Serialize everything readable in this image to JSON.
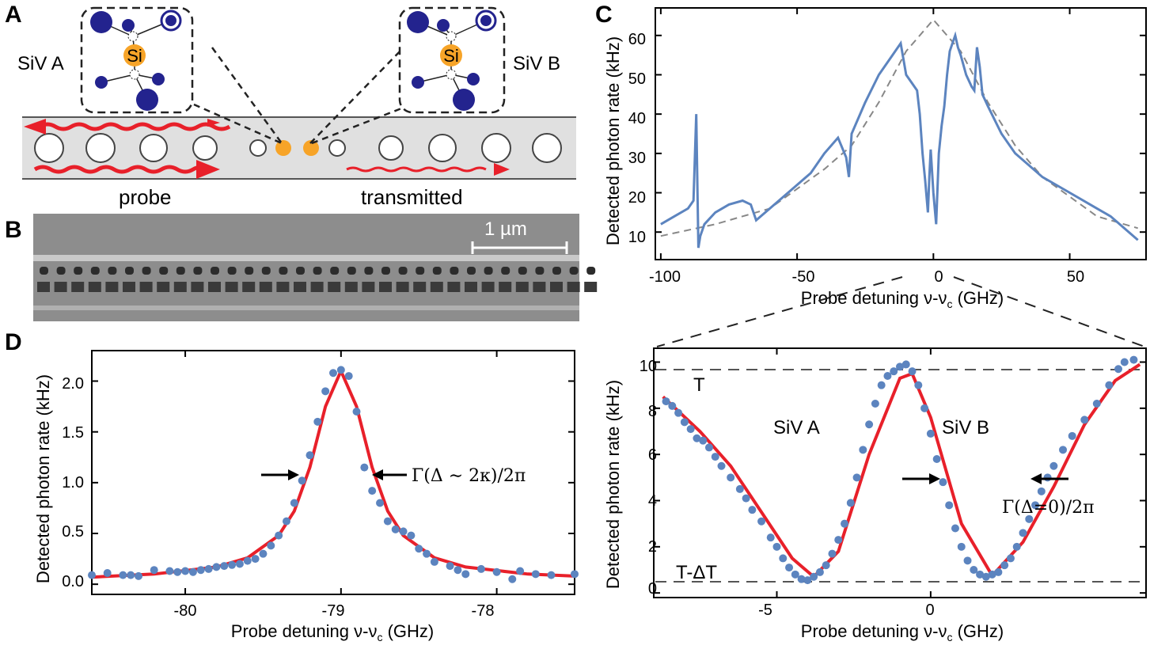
{
  "panels": {
    "a": {
      "letter": "A",
      "siv_a_label": "SiV A",
      "siv_b_label": "SiV B",
      "atom_label": "Si",
      "probe_label": "probe",
      "transmitted_label": "transmitted",
      "colors": {
        "atom_si": "#f7a428",
        "atom_c": "#23238e",
        "arrow": "#e8202a",
        "waveguide": "#e0e0e0"
      }
    },
    "b": {
      "letter": "B",
      "scale_label": "1 µm"
    },
    "c": {
      "letter": "C",
      "xlabel": "Probe detuning ν-ν",
      "xlabel_sub": "c",
      "xlabel_unit": " (GHz)",
      "ylabel": "Detected photon rate (kHz)",
      "xticks": [
        "-100",
        "-50",
        "0",
        "50"
      ],
      "yticks": [
        "10",
        "20",
        "30",
        "40",
        "50",
        "60"
      ]
    },
    "d": {
      "letter": "D",
      "xlabel": "Probe detuning ν-ν",
      "xlabel_sub": "c",
      "xlabel_unit": " (GHz)",
      "ylabel": "Detected photon rate (kHz)",
      "xticks": [
        "-80",
        "-79",
        "-78"
      ],
      "yticks": [
        "0.0",
        "0.5",
        "1.0",
        "1.5",
        "2.0"
      ],
      "annotation": "Γ(Δ ∼ 2κ)/2π"
    },
    "e": {
      "xlabel": "Probe detuning ν-ν",
      "xlabel_sub": "c",
      "xlabel_unit": " (GHz)",
      "ylabel": "Detected photon rate (kHz)",
      "xticks": [
        "-5",
        "0"
      ],
      "yticks": [
        "0",
        "2",
        "4",
        "6",
        "8",
        "10"
      ],
      "label_t": "T",
      "label_tdt": "T-ΔT",
      "label_siv_a": "SiV A",
      "label_siv_b": "SiV B",
      "annotation": "Γ(Δ=0)/2π"
    }
  },
  "chart_data": [
    {
      "panel": "C",
      "type": "line",
      "xlabel": "Probe detuning ν-νc (GHz)",
      "ylabel": "Detected photon rate (kHz)",
      "xlim": [
        -102,
        78
      ],
      "ylim": [
        3,
        67
      ],
      "series": [
        {
          "x": [
            -100,
            -95,
            -90,
            -88,
            -87,
            -86.2,
            -85.5,
            -84,
            -80,
            -75,
            -70,
            -67,
            -65,
            -60,
            -55,
            -50,
            -45,
            -40,
            -35,
            -32,
            -31,
            -30,
            -25,
            -20,
            -15,
            -12,
            -10,
            -8,
            -6,
            -5,
            -4,
            -3,
            -2,
            -1.5,
            -1,
            0,
            1,
            2,
            3,
            4,
            5,
            6,
            7,
            8,
            9,
            10,
            12,
            14,
            15,
            16,
            17,
            18,
            20,
            25,
            30,
            40,
            50,
            60,
            65,
            70,
            75
          ],
          "y": [
            12,
            14,
            16,
            18,
            40,
            6,
            9,
            12,
            15,
            17,
            18,
            17,
            13,
            16,
            19,
            22,
            25,
            30,
            34,
            29,
            24,
            35,
            43,
            50,
            55,
            58,
            50,
            48,
            46,
            40,
            30,
            23,
            15,
            24,
            31,
            20,
            12,
            30,
            37,
            42,
            50,
            56,
            58,
            60,
            57,
            55,
            50,
            47,
            46,
            57,
            52,
            45,
            42,
            35,
            30,
            24,
            20,
            16,
            14,
            11,
            8
          ]
        },
        {
          "name": "fit",
          "type": "dashed-lorentzian",
          "x": [
            -100,
            -80,
            -60,
            -40,
            -30,
            -20,
            -10,
            0,
            10,
            20,
            30,
            40,
            60,
            75
          ],
          "y": [
            9,
            12,
            16,
            26,
            32,
            43,
            56,
            64,
            56,
            43,
            32,
            24,
            14,
            11
          ]
        }
      ]
    },
    {
      "panel": "D",
      "type": "scatter",
      "xlabel": "Probe detuning ν-νc (GHz)",
      "ylabel": "Detected photon rate (kHz)",
      "xlim": [
        -80.6,
        -77.5
      ],
      "ylim": [
        -0.1,
        2.3
      ],
      "series": [
        {
          "x": [
            -80.6,
            -80.5,
            -80.4,
            -80.35,
            -80.3,
            -80.2,
            -80.1,
            -80.05,
            -80.0,
            -79.95,
            -79.9,
            -79.85,
            -79.8,
            -79.75,
            -79.7,
            -79.65,
            -79.6,
            -79.55,
            -79.5,
            -79.45,
            -79.4,
            -79.35,
            -79.3,
            -79.25,
            -79.2,
            -79.15,
            -79.1,
            -79.05,
            -79.0,
            -78.95,
            -78.9,
            -78.85,
            -78.8,
            -78.75,
            -78.7,
            -78.65,
            -78.6,
            -78.55,
            -78.5,
            -78.45,
            -78.4,
            -78.3,
            -78.25,
            -78.2,
            -78.1,
            -78.0,
            -77.9,
            -77.85,
            -77.75,
            -77.65,
            -77.5
          ],
          "y": [
            0.09,
            0.11,
            0.09,
            0.09,
            0.08,
            0.14,
            0.13,
            0.12,
            0.13,
            0.12,
            0.14,
            0.15,
            0.17,
            0.18,
            0.19,
            0.2,
            0.23,
            0.25,
            0.3,
            0.38,
            0.48,
            0.62,
            0.8,
            1.02,
            1.27,
            1.6,
            1.9,
            2.08,
            2.11,
            2.05,
            1.7,
            1.15,
            0.92,
            0.8,
            0.62,
            0.54,
            0.52,
            0.48,
            0.35,
            0.3,
            0.22,
            0.18,
            0.14,
            0.1,
            0.15,
            0.12,
            0.05,
            0.13,
            0.1,
            0.09,
            0.1
          ]
        },
        {
          "name": "fit",
          "type": "line",
          "x": [
            -80.6,
            -80.2,
            -79.8,
            -79.6,
            -79.4,
            -79.3,
            -79.2,
            -79.1,
            -79.0,
            -78.9,
            -78.8,
            -78.7,
            -78.6,
            -78.4,
            -78.2,
            -77.8,
            -77.5
          ],
          "y": [
            0.07,
            0.1,
            0.17,
            0.26,
            0.48,
            0.72,
            1.15,
            1.75,
            2.1,
            1.75,
            1.15,
            0.72,
            0.48,
            0.26,
            0.17,
            0.1,
            0.08
          ]
        }
      ]
    },
    {
      "panel": "E",
      "type": "scatter",
      "xlabel": "Probe detuning ν-νc (GHz)",
      "ylabel": "Detected photon rate (kHz)",
      "xlim": [
        -9,
        7
      ],
      "ylim": [
        -0.2,
        10.6
      ],
      "hlines": [
        9.9,
        0.4
      ],
      "series": [
        {
          "x": [
            -8.6,
            -8.4,
            -8.2,
            -8.0,
            -7.8,
            -7.6,
            -7.4,
            -7.2,
            -7.0,
            -6.8,
            -6.5,
            -6.2,
            -6.0,
            -5.8,
            -5.5,
            -5.2,
            -5.0,
            -4.8,
            -4.6,
            -4.4,
            -4.2,
            -4.0,
            -3.8,
            -3.6,
            -3.4,
            -3.2,
            -3.0,
            -2.8,
            -2.6,
            -2.4,
            -2.2,
            -2.0,
            -1.8,
            -1.6,
            -1.4,
            -1.2,
            -1.0,
            -0.8,
            -0.6,
            -0.4,
            -0.2,
            0.0,
            0.2,
            0.4,
            0.6,
            0.8,
            1.0,
            1.2,
            1.4,
            1.6,
            1.8,
            2.0,
            2.2,
            2.4,
            2.6,
            2.8,
            3.0,
            3.2,
            3.4,
            3.6,
            3.8,
            4.0,
            4.3,
            4.6,
            5.0,
            5.4,
            5.8,
            6.1,
            6.3,
            6.6
          ],
          "y": [
            8.3,
            8.1,
            7.8,
            7.4,
            7.1,
            6.7,
            6.6,
            6.3,
            5.9,
            5.5,
            5.0,
            4.5,
            4.1,
            3.6,
            3.1,
            2.4,
            2.0,
            1.5,
            1.1,
            0.8,
            0.6,
            0.55,
            0.7,
            0.9,
            1.2,
            1.7,
            2.3,
            3.0,
            3.9,
            5.0,
            6.2,
            7.3,
            8.2,
            9.0,
            9.4,
            9.6,
            9.8,
            9.9,
            9.6,
            9.0,
            8.0,
            6.9,
            5.8,
            4.8,
            3.8,
            2.8,
            2.0,
            1.4,
            1.0,
            0.8,
            0.7,
            0.8,
            0.9,
            1.2,
            1.5,
            2.0,
            2.6,
            3.2,
            3.8,
            4.4,
            5.0,
            5.5,
            6.2,
            6.8,
            7.5,
            8.2,
            9.0,
            9.7,
            10.0,
            10.1
          ]
        },
        {
          "name": "fit",
          "type": "line",
          "x": [
            -8.7,
            -7.5,
            -6.5,
            -5.5,
            -4.5,
            -3.8,
            -3.0,
            -2.0,
            -1.0,
            -0.6,
            0.0,
            1.0,
            2.0,
            3.0,
            4.0,
            5.0,
            6.0,
            6.8
          ],
          "y": [
            8.5,
            7.0,
            5.5,
            3.5,
            1.5,
            0.7,
            1.8,
            6.0,
            9.3,
            9.5,
            7.6,
            3.0,
            0.75,
            2.2,
            4.6,
            7.3,
            9.2,
            9.9
          ]
        }
      ]
    }
  ]
}
